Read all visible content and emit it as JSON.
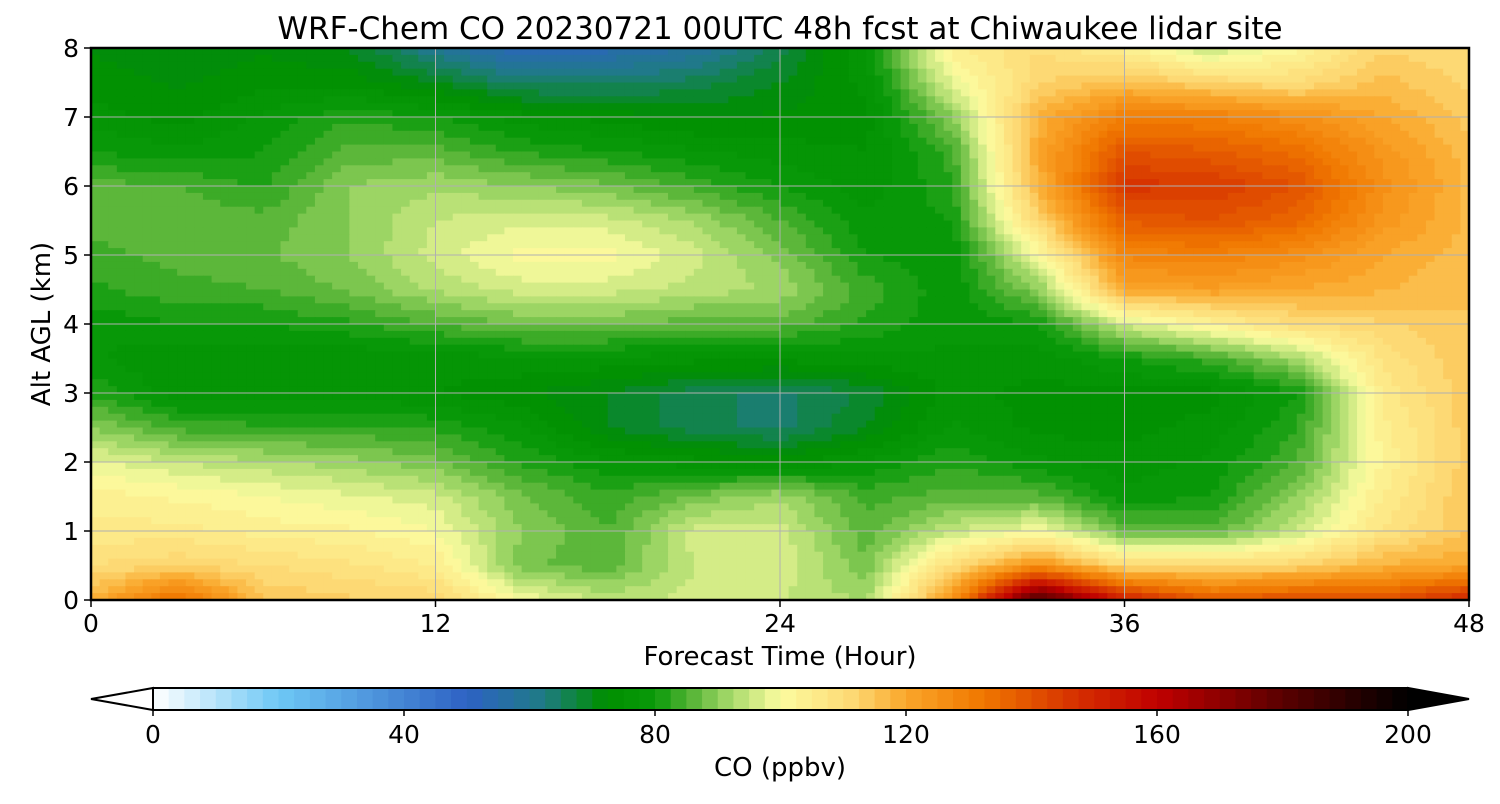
{
  "chart_data": {
    "type": "heatmap",
    "title": "WRF-Chem CO  20230721 00UTC 48h fcst at Chiwaukee lidar site",
    "xlabel": "Forecast Time (Hour)",
    "ylabel": "Alt AGL (km)",
    "xlim": [
      0,
      48
    ],
    "ylim": [
      0,
      8
    ],
    "x_ticks": [
      "0",
      "12",
      "24",
      "36",
      "48"
    ],
    "y_ticks": [
      "0",
      "1",
      "2",
      "3",
      "4",
      "5",
      "6",
      "7",
      "8"
    ],
    "grid": true,
    "x": [
      0,
      3,
      6,
      9,
      12,
      15,
      18,
      21,
      24,
      27,
      30,
      33,
      36,
      39,
      42,
      45,
      48
    ],
    "y": [
      0,
      0.5,
      1,
      1.5,
      2,
      2.5,
      3,
      3.5,
      4,
      4.5,
      5,
      5.5,
      6,
      6.5,
      7,
      7.5,
      8
    ],
    "z": [
      [
        118,
        135,
        115,
        113,
        112,
        100,
        94,
        96,
        95,
        92,
        125,
        185,
        152,
        138,
        142,
        140,
        150
      ],
      [
        110,
        112,
        110,
        108,
        105,
        88,
        86,
        95,
        97,
        88,
        110,
        125,
        110,
        110,
        112,
        118,
        120
      ],
      [
        106,
        106,
        104,
        103,
        100,
        90,
        85,
        96,
        96,
        86,
        95,
        100,
        87,
        86,
        95,
        108,
        115
      ],
      [
        104,
        102,
        100,
        98,
        96,
        88,
        83,
        88,
        92,
        84,
        86,
        86,
        78,
        80,
        90,
        105,
        115
      ],
      [
        98,
        95,
        93,
        91,
        88,
        82,
        78,
        76,
        74,
        78,
        82,
        78,
        76,
        78,
        85,
        103,
        114
      ],
      [
        90,
        84,
        83,
        83,
        82,
        78,
        70,
        66,
        64,
        70,
        78,
        74,
        74,
        76,
        82,
        104,
        114
      ],
      [
        82,
        76,
        76,
        76,
        75,
        73,
        70,
        66,
        64,
        68,
        76,
        74,
        74,
        74,
        80,
        106,
        114
      ],
      [
        78,
        75,
        75,
        75,
        76,
        77,
        77,
        76,
        76,
        77,
        77,
        76,
        80,
        84,
        92,
        108,
        115
      ],
      [
        78,
        80,
        80,
        82,
        85,
        88,
        88,
        86,
        86,
        82,
        78,
        80,
        96,
        103,
        110,
        112,
        115
      ],
      [
        82,
        84,
        85,
        88,
        93,
        96,
        96,
        94,
        92,
        84,
        78,
        90,
        120,
        122,
        120,
        118,
        115
      ],
      [
        84,
        86,
        87,
        90,
        96,
        101,
        101,
        96,
        89,
        80,
        78,
        100,
        128,
        130,
        126,
        120,
        116
      ],
      [
        86,
        87,
        86,
        90,
        95,
        97,
        96,
        92,
        85,
        78,
        80,
        112,
        138,
        140,
        136,
        124,
        117
      ],
      [
        86,
        85,
        82,
        90,
        92,
        90,
        88,
        84,
        80,
        76,
        82,
        118,
        146,
        145,
        140,
        126,
        117
      ],
      [
        80,
        78,
        80,
        86,
        86,
        82,
        80,
        78,
        76,
        75,
        84,
        120,
        140,
        138,
        134,
        124,
        116
      ],
      [
        76,
        74,
        78,
        82,
        80,
        76,
        74,
        72,
        73,
        74,
        90,
        118,
        130,
        130,
        126,
        120,
        114
      ],
      [
        74,
        72,
        74,
        74,
        70,
        64,
        64,
        66,
        70,
        76,
        98,
        112,
        116,
        112,
        110,
        116,
        112
      ],
      [
        72,
        70,
        72,
        70,
        60,
        52,
        54,
        58,
        66,
        78,
        104,
        110,
        104,
        94,
        102,
        112,
        110
      ]
    ],
    "colorbar": {
      "label": "CO  (ppbv)",
      "ticks": [
        "0",
        "40",
        "80",
        "120",
        "160",
        "200"
      ],
      "range": [
        0,
        200
      ],
      "extend": "both",
      "color_stops": [
        {
          "v": 0,
          "c": "#ffffff"
        },
        {
          "v": 20,
          "c": "#6ec8f5"
        },
        {
          "v": 50,
          "c": "#2e62c4"
        },
        {
          "v": 62,
          "c": "#1f7a86"
        },
        {
          "v": 72,
          "c": "#008f00"
        },
        {
          "v": 80,
          "c": "#0a9a0a"
        },
        {
          "v": 85,
          "c": "#4cb030"
        },
        {
          "v": 92,
          "c": "#a6d96a"
        },
        {
          "v": 100,
          "c": "#fcfca0"
        },
        {
          "v": 112,
          "c": "#fdd771"
        },
        {
          "v": 120,
          "c": "#faa62a"
        },
        {
          "v": 132,
          "c": "#f07800"
        },
        {
          "v": 148,
          "c": "#d42c00"
        },
        {
          "v": 160,
          "c": "#c00000"
        },
        {
          "v": 180,
          "c": "#5a0000"
        },
        {
          "v": 200,
          "c": "#000000"
        }
      ]
    }
  }
}
